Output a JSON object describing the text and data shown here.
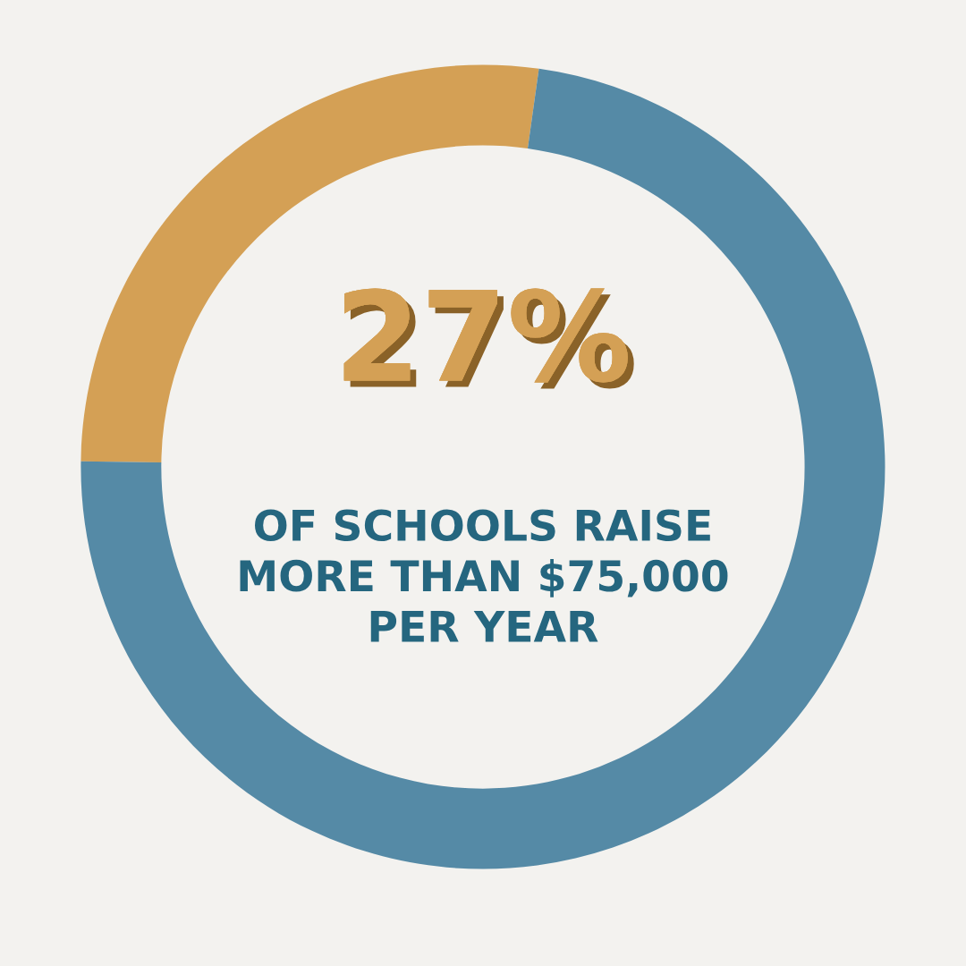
{
  "chart_data": {
    "type": "donut",
    "categories": [
      null,
      null
    ],
    "values": [
      27,
      73
    ],
    "colors": [
      "#d4a055",
      "#558aa6"
    ],
    "value_labels": [
      "27%",
      null
    ],
    "annotations": [
      "OF SCHOOLS RAISE\nMORE THAN $75,000\nPER YEAR"
    ]
  }
}
